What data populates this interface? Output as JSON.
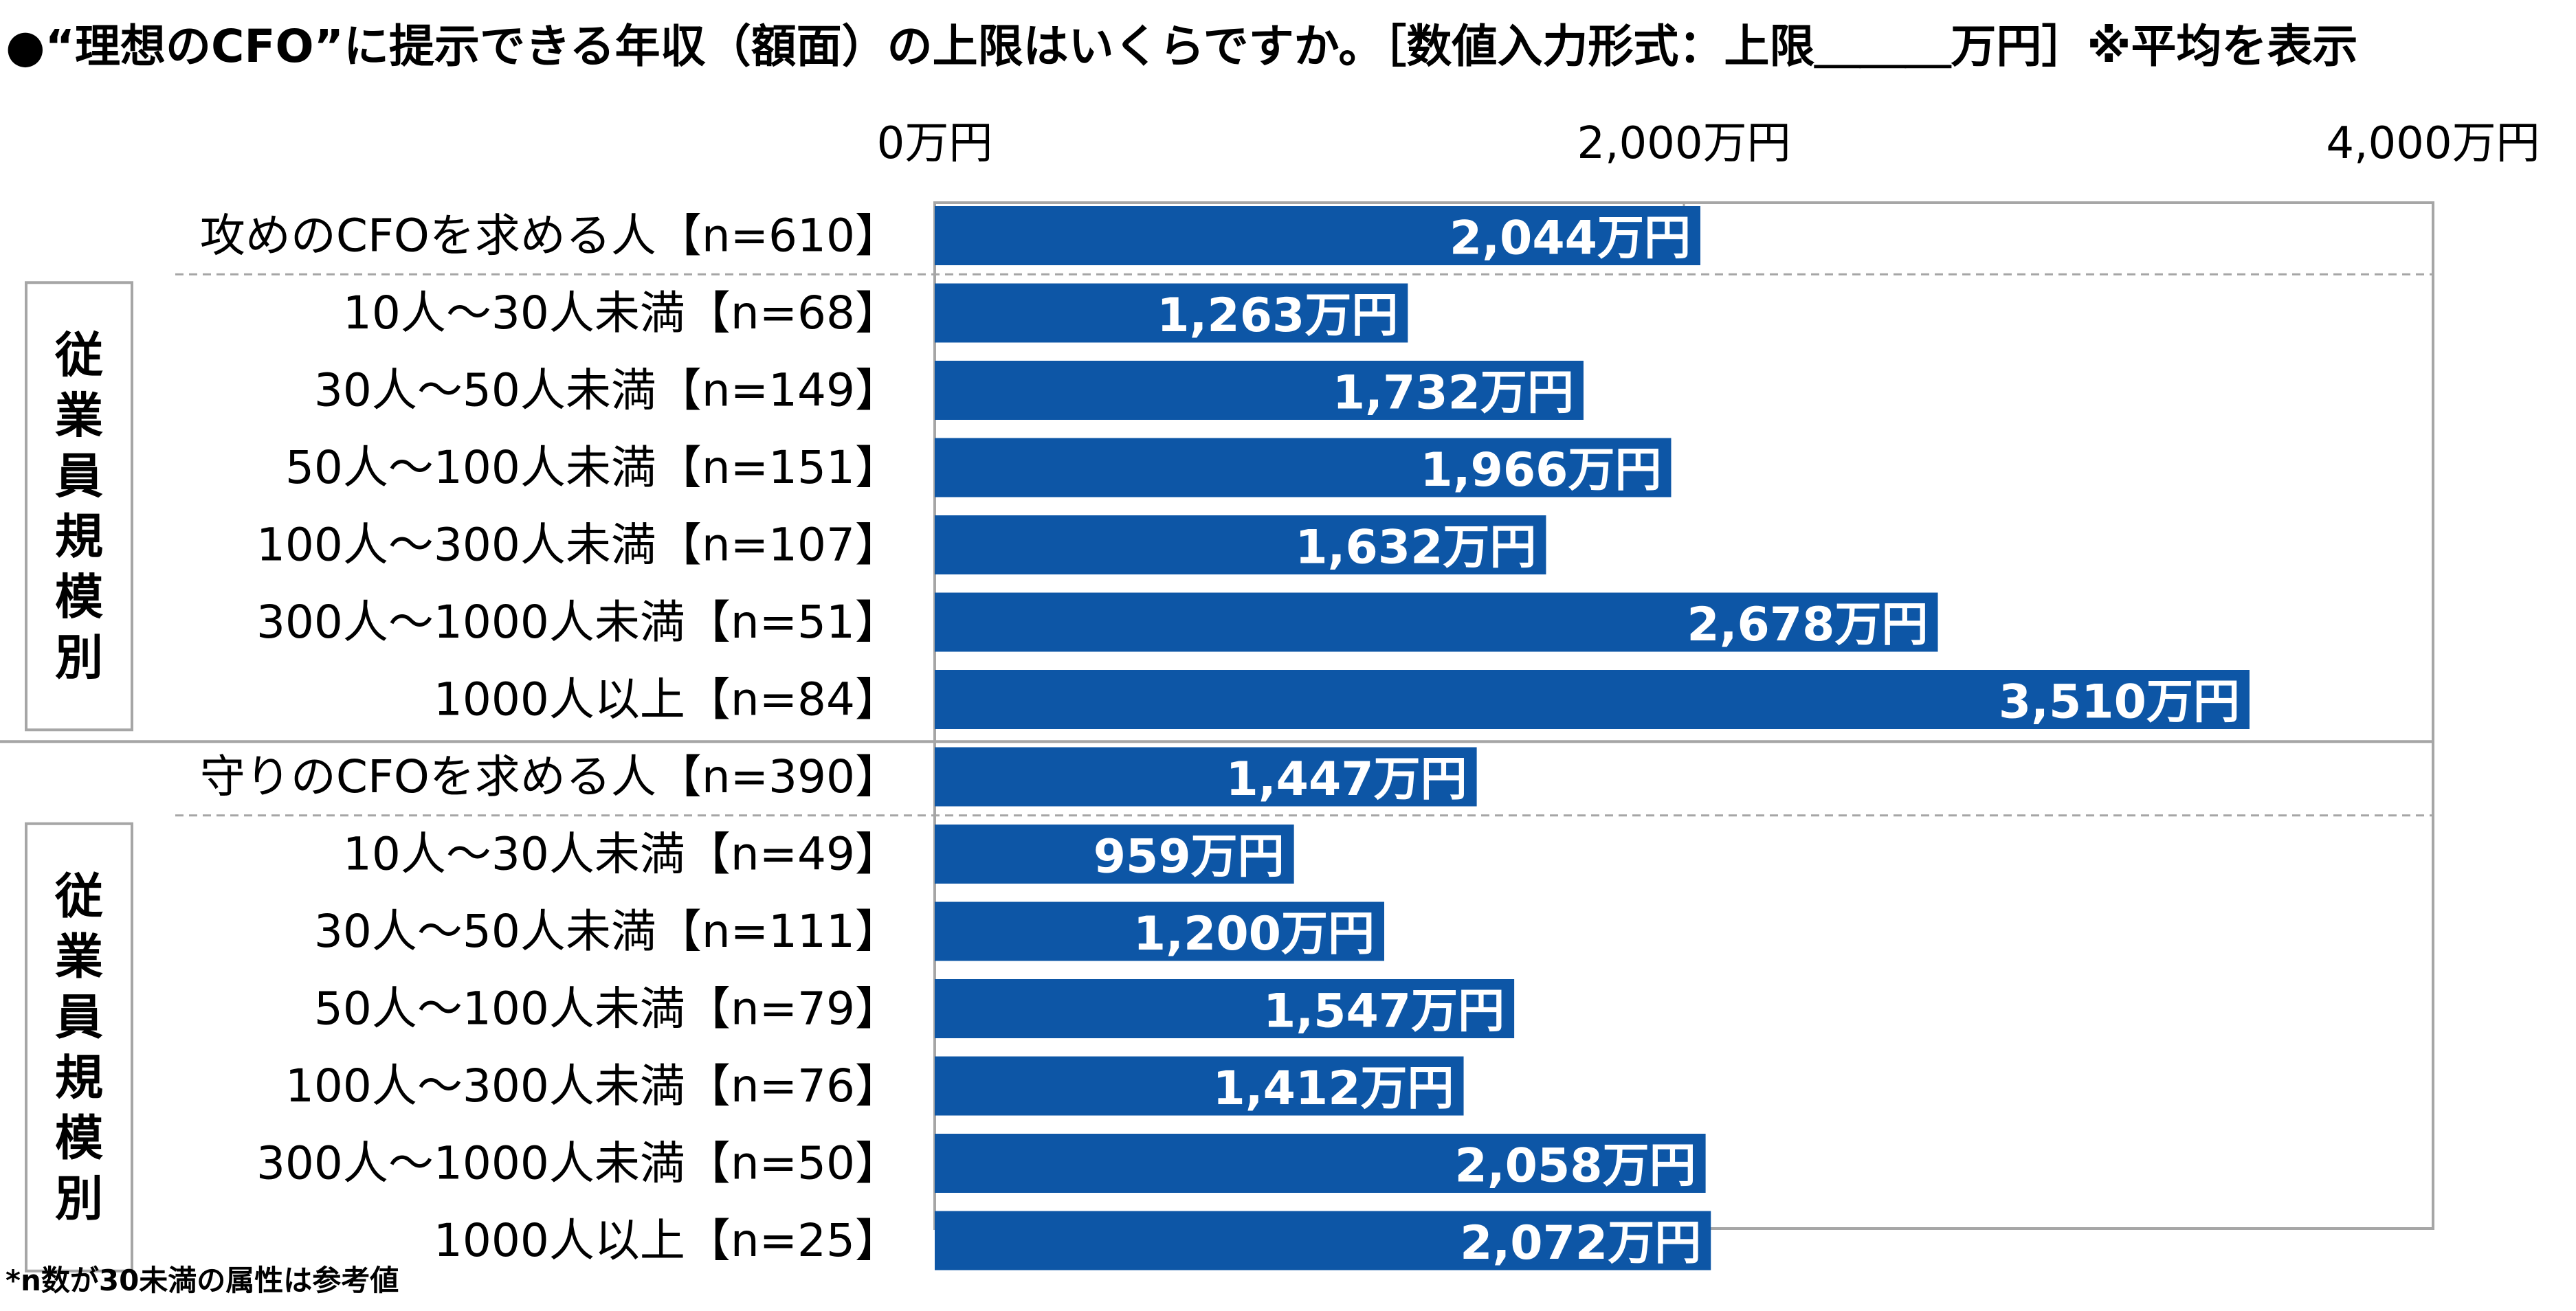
{
  "title": "●“理想のCFO”に提示できる年収（額面）の上限はいくらですか。［数値入力形式：上限＿＿＿万円］※平均を表示",
  "footnote": "*n数が30未満の属性は参考値",
  "group_labels": [
    "従業員規模別",
    "従業員規模別"
  ],
  "colors": {
    "bar": "#0d56a6",
    "frame": "#a6a6a6",
    "divider": "#a6a6a6"
  },
  "chart_data": {
    "type": "bar",
    "orientation": "horizontal",
    "unit": "万円",
    "xlim": [
      0,
      4000
    ],
    "ticks": [
      {
        "value": 0,
        "label": "0万円"
      },
      {
        "value": 2000,
        "label": "2,000万円"
      },
      {
        "value": 4000,
        "label": "4,000万円"
      }
    ],
    "categories": [
      "攻めのCFOを求める人【n=610】",
      "10人～30人未満【n=68】",
      "30人～50人未満【n=149】",
      "50人～100人未満【n=151】",
      "100人～300人未満【n=107】",
      "300人～1000人未満【n=51】",
      "1000人以上【n=84】",
      "守りのCFOを求める人【n=390】",
      "10人～30人未満【n=49】",
      "30人～50人未満【n=111】",
      "50人～100人未満【n=79】",
      "100人～300人未満【n=76】",
      "300人～1000人未満【n=50】",
      "1000人以上【n=25】"
    ],
    "values": [
      2044,
      1263,
      1732,
      1966,
      1632,
      2678,
      3510,
      1447,
      959,
      1200,
      1547,
      1412,
      2058,
      2072
    ],
    "value_labels": [
      "2,044万円",
      "1,263万円",
      "1,732万円",
      "1,966万円",
      "1,632万円",
      "2,678万円",
      "3,510万円",
      "1,447万円",
      "959万円",
      "1,200万円",
      "1,547万円",
      "1,412万円",
      "2,058万円",
      "2,072万円"
    ],
    "legend": "none",
    "grid": false
  }
}
